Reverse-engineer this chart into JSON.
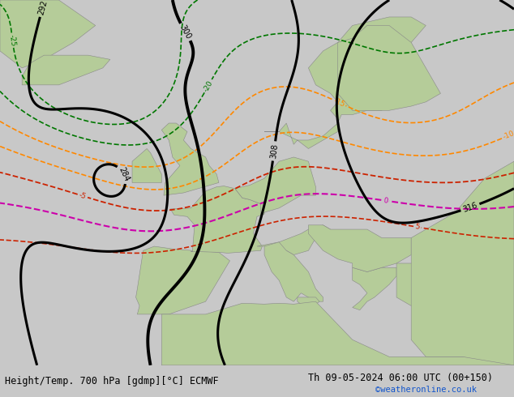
{
  "title_left": "Height/Temp. 700 hPa [gdmp][°C] ECMWF",
  "title_right": "Th 09-05-2024 06:00 UTC (00+150)",
  "credit": "©weatheronline.co.uk",
  "figsize": [
    6.34,
    4.9
  ],
  "dpi": 100,
  "bg_color": "#c8c8c8",
  "land_color": "#b5cc99",
  "ocean_color": "#c8c8c8",
  "bottom_bar_color": "#cccccc",
  "text_color": "#000000",
  "title_fontsize": 8.5,
  "credit_color": "#1155cc",
  "credit_fontsize": 7.5,
  "geo_color": "#000000",
  "temp_orange_color": "#ff8800",
  "temp_red_color": "#cc2200",
  "temp_magenta_color": "#cc00aa",
  "temp_green_color": "#007700"
}
